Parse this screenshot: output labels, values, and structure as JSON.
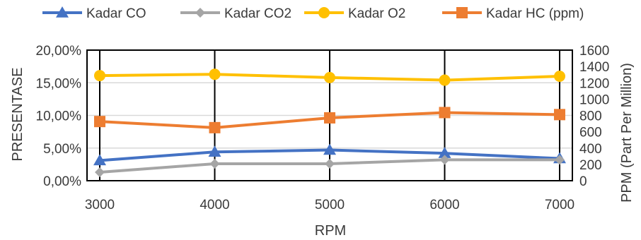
{
  "chart_data": {
    "type": "line",
    "x": [
      3000,
      4000,
      5000,
      6000,
      7000
    ],
    "xlabel": "RPM",
    "ylabel_left": "PRESENTASE",
    "ylabel_right": "PPM (Part Per Million)",
    "left_axis": {
      "ylim": [
        0,
        0.2
      ],
      "ticks": [
        0,
        0.05,
        0.1,
        0.15,
        0.2
      ],
      "tick_labels": [
        "0,00%",
        "5,00%",
        "10,00%",
        "15,00%",
        "20,00%"
      ]
    },
    "right_axis": {
      "ylim": [
        0,
        1600
      ],
      "ticks": [
        0,
        200,
        400,
        600,
        800,
        1000,
        1200,
        1400,
        1600
      ],
      "tick_labels": [
        "0",
        "200",
        "400",
        "600",
        "800",
        "1000",
        "1200",
        "1400",
        "1600"
      ]
    },
    "series": [
      {
        "name": "Kadar CO",
        "axis": "left",
        "marker": "triangle",
        "color": "#4472C4",
        "values": [
          0.031,
          0.044,
          0.047,
          0.042,
          0.034
        ]
      },
      {
        "name": "Kadar CO2",
        "axis": "left",
        "marker": "diamond",
        "color": "#A5A5A5",
        "values": [
          0.013,
          0.026,
          0.026,
          0.032,
          0.032
        ]
      },
      {
        "name": "Kadar O2",
        "axis": "left",
        "marker": "circle",
        "color": "#FFC000",
        "values": [
          0.161,
          0.163,
          0.158,
          0.154,
          0.16
        ]
      },
      {
        "name": "Kadar HC (ppm)",
        "axis": "right",
        "marker": "square",
        "color": "#ED7D31",
        "values": [
          725,
          650,
          770,
          835,
          810
        ]
      }
    ],
    "grid": true,
    "legend_position": "top"
  }
}
